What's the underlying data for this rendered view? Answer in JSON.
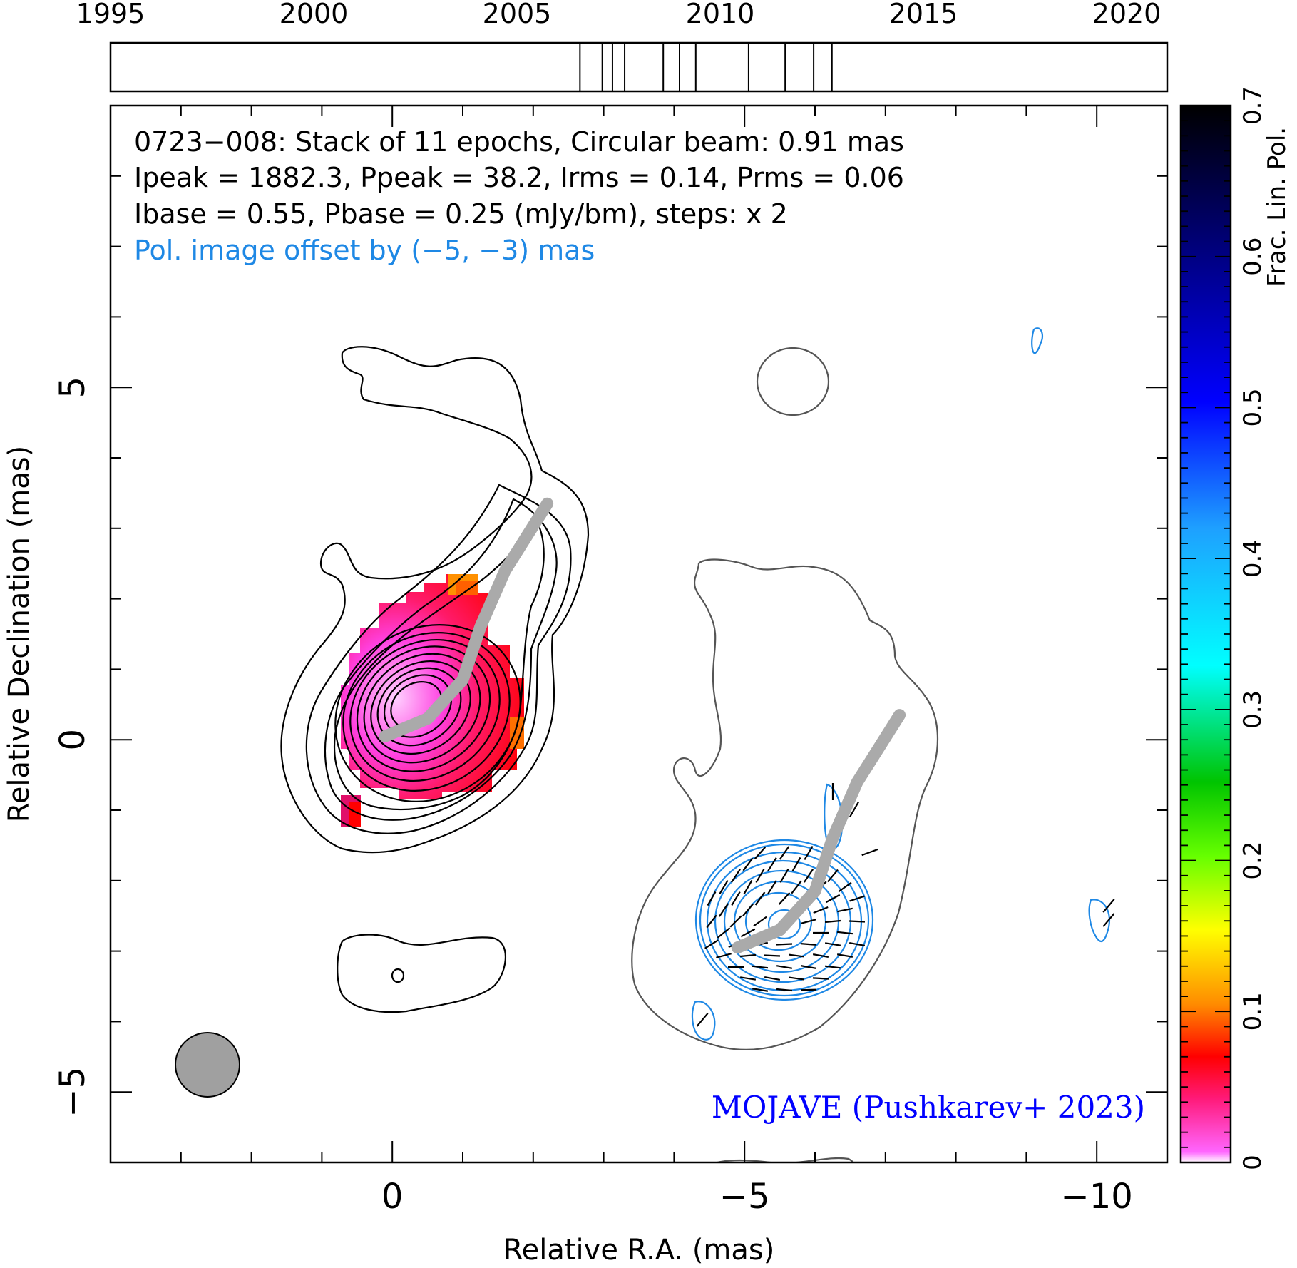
{
  "chart_data": {
    "type": "heatmap",
    "source": "0723-008",
    "epochs_count": 11,
    "header_lines": [
      "0723−008: Stack of 11 epochs, Circular beam: 0.91 mas",
      "Ipeak = 1882.3, Ppeak = 38.2, Irms = 0.14, Prms = 0.06",
      "Ibase = 0.55, Pbase = 0.25 (mJy/bm), steps: x 2"
    ],
    "offset_note": "Pol. image offset by (−5, −3) mas",
    "credit": "MOJAVE (Pushkarev+ 2023)",
    "xlabel": "Relative R.A. (mas)",
    "ylabel": "Relative Declination (mas)",
    "colorbar_label": "Frac. Lin. Pol.",
    "xlim": [
      4,
      -11
    ],
    "ylim": [
      -6,
      9
    ],
    "x_ticks": [
      {
        "value": 0,
        "label": "0"
      },
      {
        "value": -5,
        "label": "−5"
      },
      {
        "value": -10,
        "label": "−10"
      }
    ],
    "y_ticks": [
      {
        "value": 5,
        "label": "5"
      },
      {
        "value": 0,
        "label": "0"
      },
      {
        "value": -5,
        "label": "−5"
      }
    ],
    "colorbar": {
      "min": 0,
      "max": 0.7,
      "ticks": [
        {
          "value": 0,
          "label": "0"
        },
        {
          "value": 0.1,
          "label": "0.1"
        },
        {
          "value": 0.2,
          "label": "0.2"
        },
        {
          "value": 0.3,
          "label": "0.3"
        },
        {
          "value": 0.4,
          "label": "0.4"
        },
        {
          "value": 0.5,
          "label": "0.5"
        },
        {
          "value": 0.6,
          "label": "0.6"
        },
        {
          "value": 0.7,
          "label": "0.7"
        }
      ]
    },
    "timeline": {
      "range": [
        1995,
        2021
      ],
      "labels": [
        {
          "year": 1995,
          "label": "1995"
        },
        {
          "year": 2000,
          "label": "2000"
        },
        {
          "year": 2005,
          "label": "2005"
        },
        {
          "year": 2010,
          "label": "2010"
        },
        {
          "year": 2015,
          "label": "2015"
        },
        {
          "year": 2020,
          "label": "2020"
        }
      ],
      "epochs": [
        2006.55,
        2007.1,
        2007.35,
        2007.65,
        2008.6,
        2009.0,
        2009.4,
        2010.7,
        2011.6,
        2012.3,
        2012.75
      ]
    },
    "beam_fwhm_mas": 0.91,
    "ridgeline": [
      [
        0.1,
        0.05
      ],
      [
        -0.5,
        0.3
      ],
      [
        -1.0,
        0.85
      ],
      [
        -1.25,
        1.6
      ],
      [
        -1.6,
        2.4
      ],
      [
        -2.2,
        3.35
      ]
    ],
    "ridgeline_offset": [
      -5,
      -3
    ]
  },
  "colors": {
    "stokes_i_contour": "#000000",
    "shifted_stokes_i_contour": "#555555",
    "pol_contour": "#1e88e5",
    "offset_note": "#1e88e5",
    "credit": "#0000ff",
    "ridgeline": "#aaaaaa",
    "beam": "#a0a0a0"
  }
}
